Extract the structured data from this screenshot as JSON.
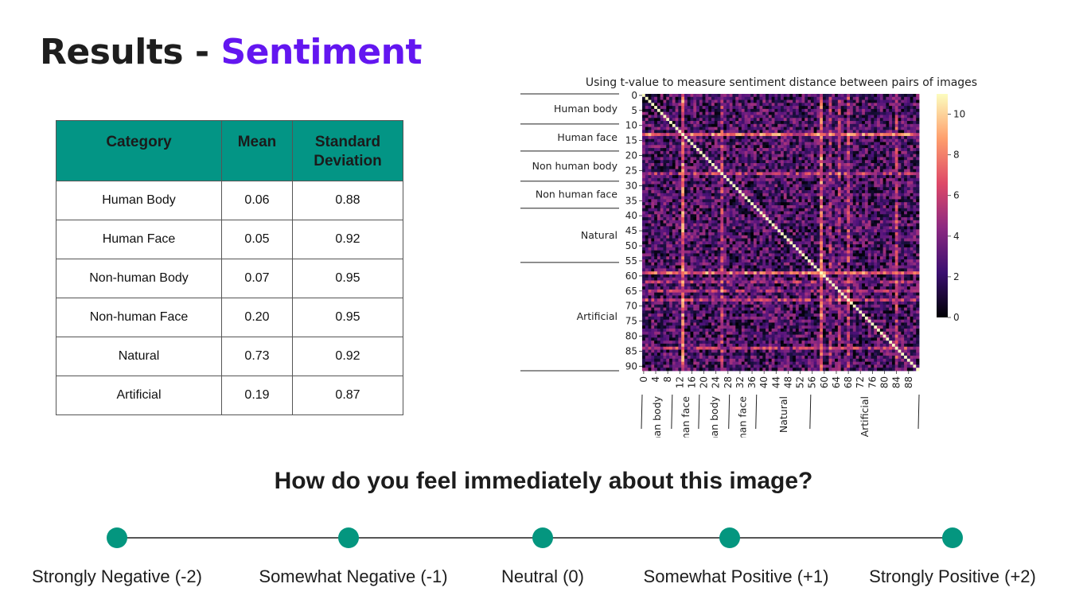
{
  "slide": {
    "title_prefix": "Results - ",
    "title_accent": "Sentiment",
    "title_accent_color": "#6316f0"
  },
  "stats_table": {
    "header_color": "#039585",
    "headers": [
      "Category",
      "Mean",
      "Standard Deviation"
    ],
    "rows": [
      [
        "Human Body",
        "0.06",
        "0.88"
      ],
      [
        "Human Face",
        "0.05",
        "0.92"
      ],
      [
        "Non-human Body",
        "0.07",
        "0.95"
      ],
      [
        "Non-human Face",
        "0.20",
        "0.95"
      ],
      [
        "Natural",
        "0.73",
        "0.92"
      ],
      [
        "Artificial",
        "0.19",
        "0.87"
      ]
    ]
  },
  "chart_data": {
    "type": "heatmap",
    "title": "Using t-value to measure sentiment distance between pairs of images",
    "size": 92,
    "y_ticks": [
      "0",
      "5",
      "10",
      "15",
      "20",
      "25",
      "30",
      "35",
      "40",
      "45",
      "50",
      "55",
      "60",
      "65",
      "70",
      "75",
      "80",
      "85",
      "90"
    ],
    "x_ticks": [
      "0",
      "4",
      "8",
      "12",
      "16",
      "20",
      "24",
      "28",
      "32",
      "36",
      "40",
      "44",
      "48",
      "52",
      "56",
      "60",
      "64",
      "68",
      "72",
      "76",
      "80",
      "84",
      "88"
    ],
    "colorbar": {
      "min": 0,
      "max": 11,
      "ticks": [
        "0",
        "2",
        "4",
        "6",
        "8",
        "10"
      ]
    },
    "groups": [
      {
        "label": "Human body",
        "start": 0,
        "end": 10
      },
      {
        "label": "Human face",
        "start": 10,
        "end": 19
      },
      {
        "label": "Non human body",
        "start": 19,
        "end": 29
      },
      {
        "label": "Non human face",
        "start": 29,
        "end": 38
      },
      {
        "label": "Natural",
        "start": 38,
        "end": 56
      },
      {
        "label": "Artificial",
        "start": 56,
        "end": 92
      }
    ],
    "diagonal_value": 11,
    "bright_rows": [
      13,
      26,
      59,
      68,
      84
    ],
    "bright_cols": [
      13,
      59,
      62,
      65
    ]
  },
  "question": "How do you feel immediately about this image?",
  "scale": {
    "dot_color": "#04967f",
    "points": [
      {
        "label": "Strongly Negative (-2)",
        "value": -2
      },
      {
        "label": "Somewhat Negative (-1)",
        "value": -1
      },
      {
        "label": "Neutral (0)",
        "value": 0
      },
      {
        "label": "Somewhat Positive (+1)",
        "value": 1
      },
      {
        "label": "Strongly Positive (+2)",
        "value": 2
      }
    ]
  }
}
